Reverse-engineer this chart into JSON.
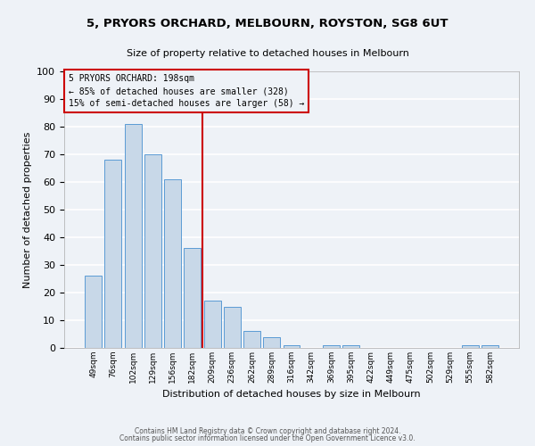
{
  "title": "5, PRYORS ORCHARD, MELBOURN, ROYSTON, SG8 6UT",
  "subtitle": "Size of property relative to detached houses in Melbourn",
  "xlabel": "Distribution of detached houses by size in Melbourn",
  "ylabel": "Number of detached properties",
  "bar_labels": [
    "49sqm",
    "76sqm",
    "102sqm",
    "129sqm",
    "156sqm",
    "182sqm",
    "209sqm",
    "236sqm",
    "262sqm",
    "289sqm",
    "316sqm",
    "342sqm",
    "369sqm",
    "395sqm",
    "422sqm",
    "449sqm",
    "475sqm",
    "502sqm",
    "529sqm",
    "555sqm",
    "582sqm"
  ],
  "bar_values": [
    26,
    68,
    81,
    70,
    61,
    36,
    17,
    15,
    6,
    4,
    1,
    0,
    1,
    1,
    0,
    0,
    0,
    0,
    0,
    1,
    1
  ],
  "bar_color": "#c8d8e8",
  "bar_edge_color": "#5b9bd5",
  "ylim": [
    0,
    100
  ],
  "yticks": [
    0,
    10,
    20,
    30,
    40,
    50,
    60,
    70,
    80,
    90,
    100
  ],
  "vline_color": "#cc0000",
  "annotation_title": "5 PRYORS ORCHARD: 198sqm",
  "annotation_line1": "← 85% of detached houses are smaller (328)",
  "annotation_line2": "15% of semi-detached houses are larger (58) →",
  "annotation_box_color": "#cc0000",
  "background_color": "#eef2f7",
  "grid_color": "#ffffff",
  "footer1": "Contains HM Land Registry data © Crown copyright and database right 2024.",
  "footer2": "Contains public sector information licensed under the Open Government Licence v3.0."
}
